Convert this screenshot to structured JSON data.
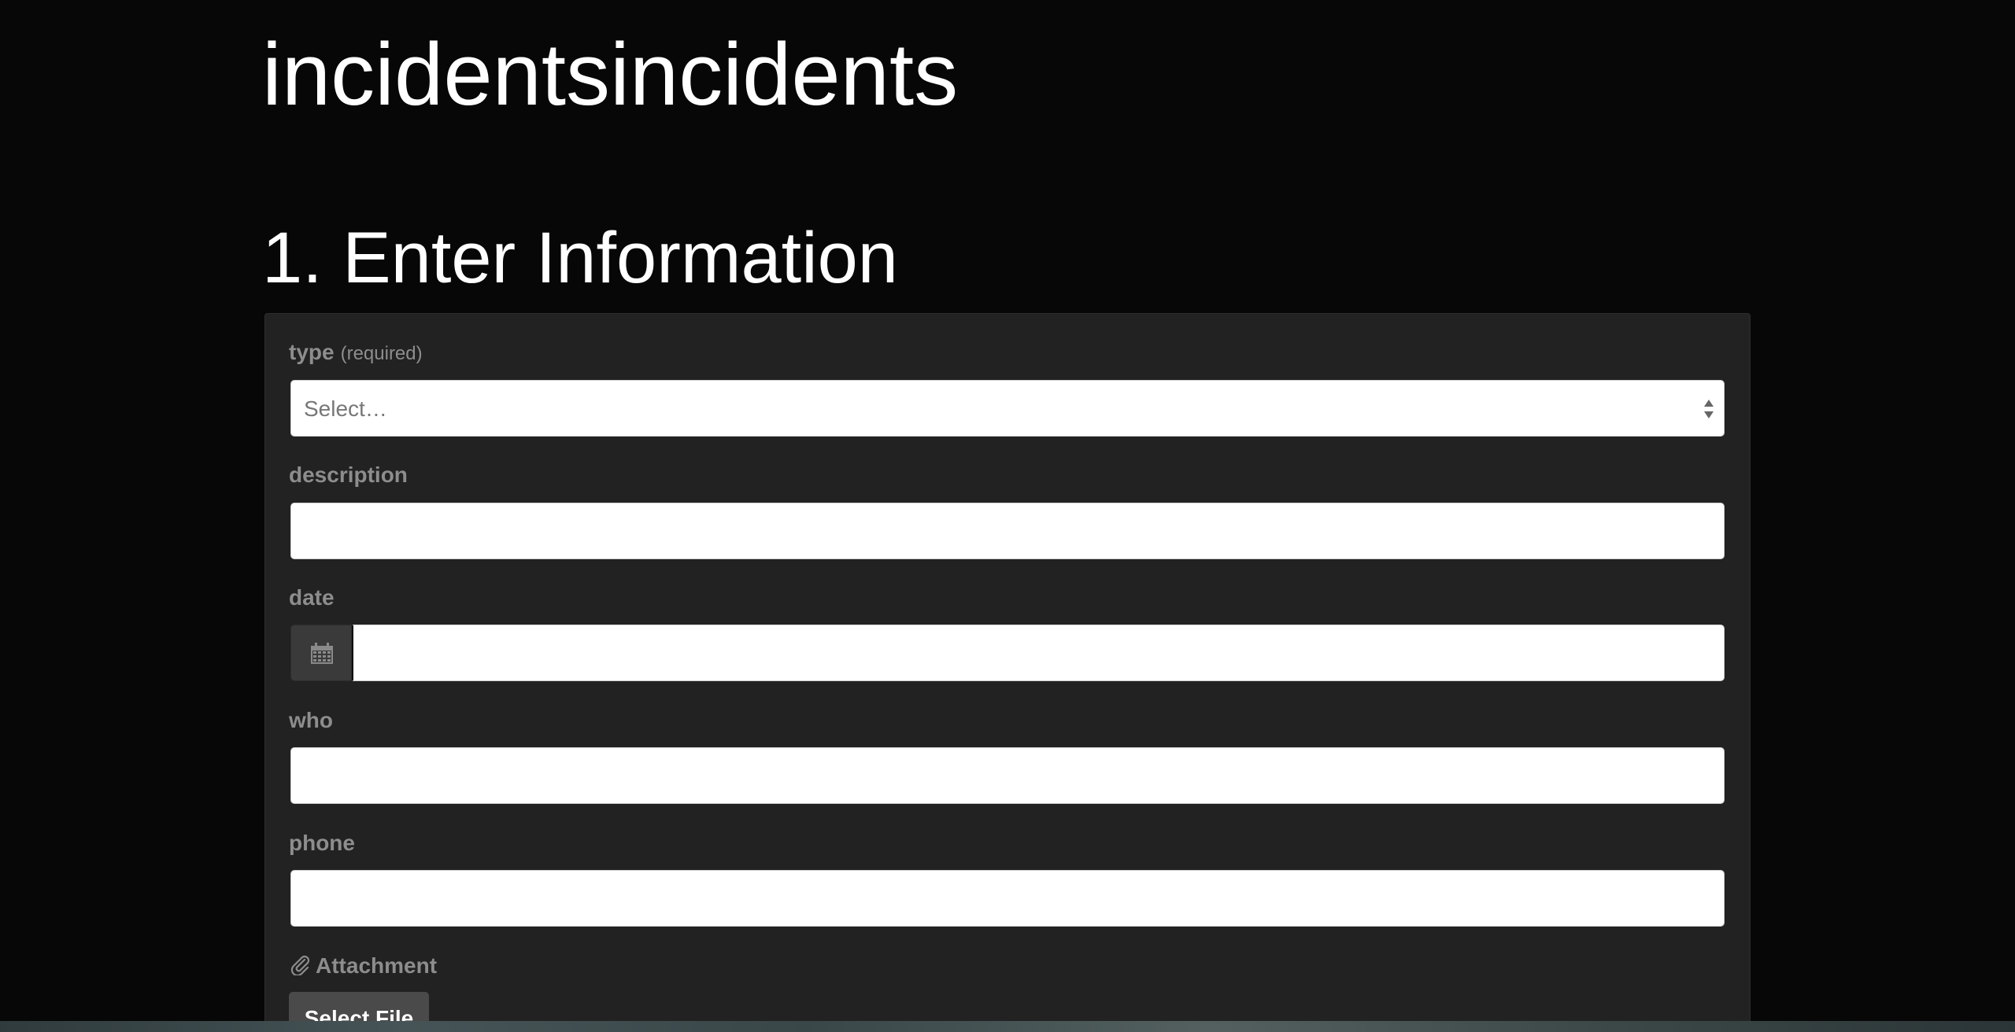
{
  "app": {
    "title": "incidentsincidents"
  },
  "section": {
    "title": "1. Enter Information"
  },
  "form": {
    "type": {
      "label": "type",
      "required_note": "(required)",
      "selected_value": "Select…"
    },
    "description": {
      "label": "description",
      "value": ""
    },
    "date": {
      "label": "date",
      "icon": "calendar-icon",
      "value": ""
    },
    "who": {
      "label": "who",
      "value": ""
    },
    "phone": {
      "label": "phone",
      "value": ""
    },
    "attachment": {
      "label": "Attachment",
      "icon": "paperclip-icon",
      "button_label": "Select File"
    }
  },
  "colors": {
    "background": "#070707",
    "panel": "#222222",
    "label": "#8d8d8d",
    "input": "#ffffff"
  }
}
